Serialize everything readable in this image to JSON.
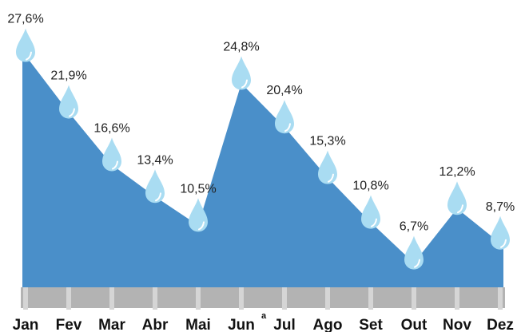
{
  "chart_data": {
    "type": "area",
    "categories": [
      "Jan",
      "Fev",
      "Mar",
      "Abr",
      "Mai",
      "Jun",
      "Jul",
      "Ago",
      "Set",
      "Out",
      "Nov",
      "Dez"
    ],
    "values": [
      27.6,
      21.9,
      16.6,
      13.4,
      10.5,
      24.8,
      20.4,
      15.3,
      10.8,
      6.7,
      12.2,
      8.7
    ],
    "value_labels": [
      "27,6%",
      "21,9%",
      "16,6%",
      "13,4%",
      "10,5%",
      "24,8%",
      "20,4%",
      "15,3%",
      "10,8%",
      "6,7%",
      "12,2%",
      "8,7%"
    ],
    "color": "#4a8fc9",
    "marker_color": "#a9dcf2",
    "annotations": [
      "a"
    ]
  }
}
